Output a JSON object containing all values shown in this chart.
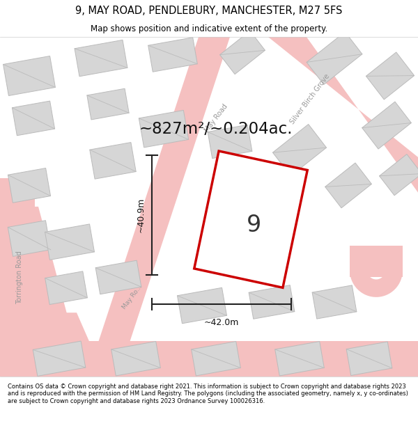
{
  "title": "9, MAY ROAD, PENDLEBURY, MANCHESTER, M27 5FS",
  "subtitle": "Map shows position and indicative extent of the property.",
  "area_label": "~827m²/~0.204ac.",
  "plot_number": "9",
  "width_label": "~42.0m",
  "height_label": "~40.9m",
  "footer": "Contains OS data © Crown copyright and database right 2021. This information is subject to Crown copyright and database rights 2023 and is reproduced with the permission of HM Land Registry. The polygons (including the associated geometry, namely x, y co-ordinates) are subject to Crown copyright and database rights 2023 Ordnance Survey 100026316.",
  "bg_color": "#efefef",
  "plot_color": "#cc0000",
  "plot_fill": "#ffffff",
  "road_color": "#f5c0c0",
  "road_edge": "#e8a0a0",
  "building_color": "#d6d6d6",
  "building_edge": "#bbbbbb",
  "street_label_color": "#999999",
  "title_color": "#000000",
  "footer_color": "#000000",
  "measure_color": "#222222"
}
